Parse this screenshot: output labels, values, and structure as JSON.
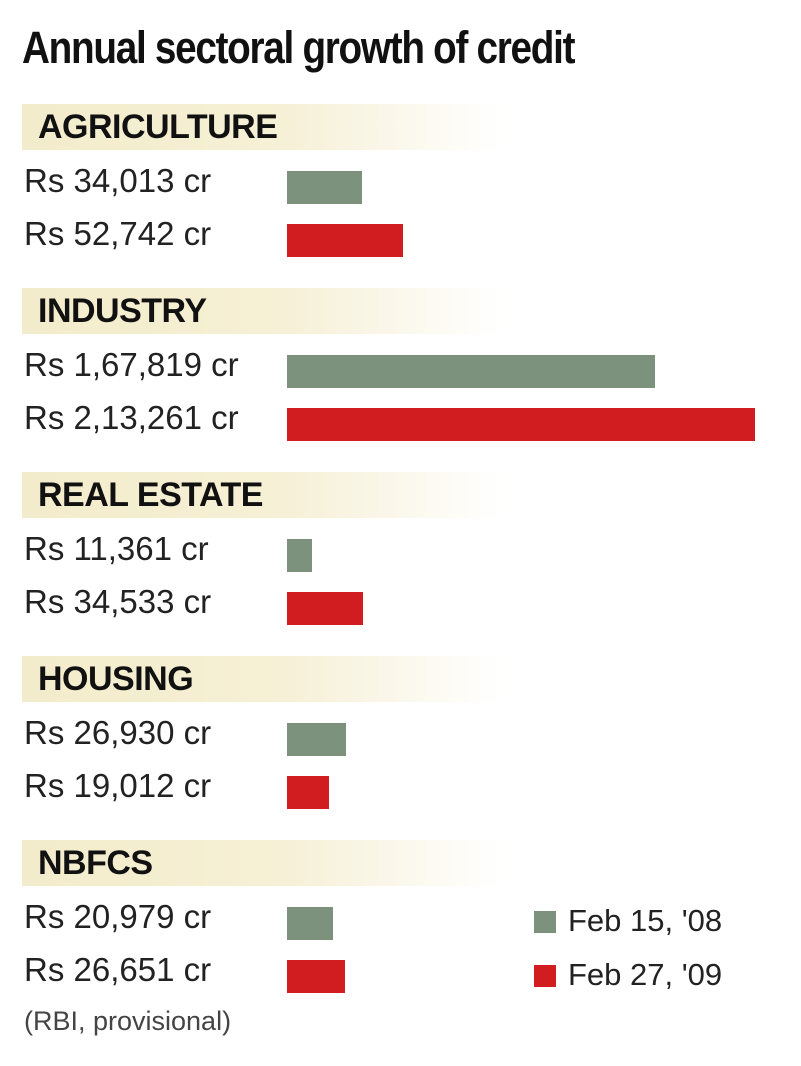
{
  "chart_data": {
    "type": "bar",
    "orientation": "horizontal",
    "title": "Annual sectoral growth of credit",
    "categories": [
      "AGRICULTURE",
      "INDUSTRY",
      "REAL ESTATE",
      "HOUSING",
      "NBFCS"
    ],
    "series": [
      {
        "name": "Feb 15, '08",
        "color": "#7c927d",
        "values": [
          34013,
          167819,
          11361,
          26930,
          20979
        ],
        "labels": [
          "Rs 34,013 cr",
          "Rs 1,67,819 cr",
          "Rs 11,361 cr",
          "Rs 26,930 cr",
          "Rs 20,979 cr"
        ]
      },
      {
        "name": "Feb 27, '09",
        "color": "#d11d20",
        "values": [
          52742,
          213261,
          34533,
          19012,
          26651
        ],
        "labels": [
          "Rs 52,742 cr",
          "Rs 2,13,261 cr",
          "Rs 34,533 cr",
          "Rs 19,012 cr",
          "Rs 26,651 cr"
        ]
      }
    ],
    "xlim": [
      0,
      213261
    ],
    "grid": false,
    "legend": "bottom-right",
    "source": "(RBI, provisional)"
  }
}
